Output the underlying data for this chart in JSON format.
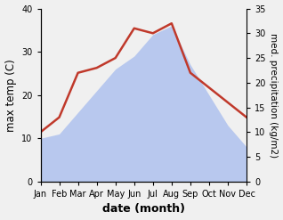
{
  "months": [
    "Jan",
    "Feb",
    "Mar",
    "Apr",
    "May",
    "Jun",
    "Jul",
    "Aug",
    "Sep",
    "Oct",
    "Nov",
    "Dec"
  ],
  "temp": [
    10,
    11,
    16,
    21,
    26,
    29,
    34,
    36,
    27,
    20,
    13,
    8
  ],
  "precip": [
    10,
    13,
    22,
    23,
    25,
    31,
    30,
    32,
    22,
    19,
    16,
    13
  ],
  "temp_color_fill": "#b8c8ee",
  "precip_color": "#c0392b",
  "temp_ylim": [
    0,
    40
  ],
  "precip_ylim": [
    0,
    35
  ],
  "temp_yticks": [
    0,
    10,
    20,
    30,
    40
  ],
  "precip_yticks": [
    0,
    5,
    10,
    15,
    20,
    25,
    30,
    35
  ],
  "xlabel": "date (month)",
  "ylabel_left": "max temp (C)",
  "ylabel_right": "med. precipitation (kg/m2)",
  "bg_color": "#f0f0f0",
  "tick_fontsize": 7,
  "label_fontsize": 8.5,
  "xlabel_fontsize": 9
}
